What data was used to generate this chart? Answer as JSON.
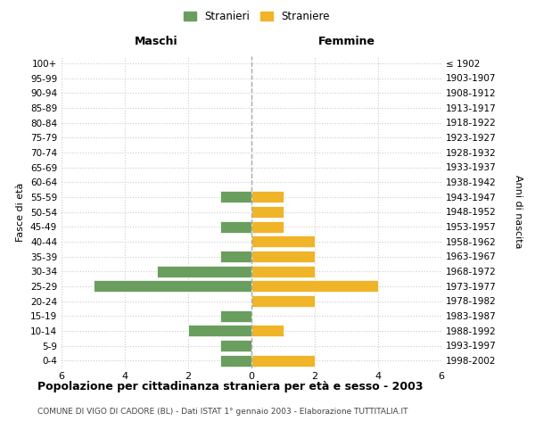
{
  "age_groups": [
    "0-4",
    "5-9",
    "10-14",
    "15-19",
    "20-24",
    "25-29",
    "30-34",
    "35-39",
    "40-44",
    "45-49",
    "50-54",
    "55-59",
    "60-64",
    "65-69",
    "70-74",
    "75-79",
    "80-84",
    "85-89",
    "90-94",
    "95-99",
    "100+"
  ],
  "birth_years": [
    "1998-2002",
    "1993-1997",
    "1988-1992",
    "1983-1987",
    "1978-1982",
    "1973-1977",
    "1968-1972",
    "1963-1967",
    "1958-1962",
    "1953-1957",
    "1948-1952",
    "1943-1947",
    "1938-1942",
    "1933-1937",
    "1928-1932",
    "1923-1927",
    "1918-1922",
    "1913-1917",
    "1908-1912",
    "1903-1907",
    "≤ 1902"
  ],
  "maschi": [
    1,
    1,
    2,
    1,
    0,
    5,
    3,
    1,
    0,
    1,
    0,
    1,
    0,
    0,
    0,
    0,
    0,
    0,
    0,
    0,
    0
  ],
  "femmine": [
    2,
    0,
    1,
    0,
    2,
    4,
    2,
    2,
    2,
    1,
    1,
    1,
    0,
    0,
    0,
    0,
    0,
    0,
    0,
    0,
    0
  ],
  "maschi_color": "#6a9e5e",
  "femmine_color": "#f0b429",
  "title": "Popolazione per cittadinanza straniera per età e sesso - 2003",
  "subtitle": "COMUNE DI VIGO DI CADORE (BL) - Dati ISTAT 1° gennaio 2003 - Elaborazione TUTTITALIA.IT",
  "xlabel_left": "Maschi",
  "xlabel_right": "Femmine",
  "ylabel_left": "Fasce di età",
  "ylabel_right": "Anni di nascita",
  "legend_maschi": "Stranieri",
  "legend_femmine": "Straniere",
  "xlim": 6,
  "background_color": "#ffffff",
  "grid_color": "#cccccc"
}
